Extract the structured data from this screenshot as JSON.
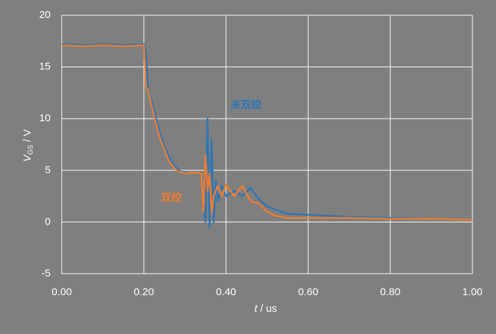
{
  "chart_data": {
    "type": "line",
    "xlabel": [
      "t",
      " / us"
    ],
    "ylabel": [
      "V",
      "GS",
      " / V"
    ],
    "x": [
      0,
      0.05,
      0.1,
      0.15,
      0.2,
      0.205,
      0.21,
      0.22,
      0.23,
      0.24,
      0.25,
      0.26,
      0.27,
      0.28,
      0.29,
      0.3,
      0.32,
      0.34,
      0.345,
      0.35,
      0.355,
      0.36,
      0.365,
      0.37,
      0.375,
      0.38,
      0.39,
      0.4,
      0.42,
      0.44,
      0.46,
      0.48,
      0.5,
      0.52,
      0.55,
      0.6,
      0.65,
      0.7,
      0.8,
      0.9,
      1.0
    ],
    "series": [
      {
        "name": "未双绞",
        "color": "#2e75b6",
        "values": [
          17.2,
          17.1,
          17.2,
          17.1,
          17.2,
          16.5,
          13,
          11.5,
          10,
          8.5,
          7.3,
          6.4,
          5.7,
          5.2,
          4.9,
          4.8,
          4.8,
          4.7,
          2,
          0,
          10,
          -0.5,
          8,
          0,
          4,
          2,
          3.5,
          2.5,
          3,
          2.5,
          3.3,
          2.2,
          1.5,
          1.2,
          0.8,
          0.7,
          0.6,
          0.5,
          0.4,
          0.3,
          0.2
        ]
      },
      {
        "name": "双绞",
        "color": "#ed7d31",
        "values": [
          17.1,
          17.0,
          17.1,
          17.0,
          17.1,
          13,
          12.8,
          11,
          9.5,
          8,
          7,
          6,
          5.4,
          5,
          4.8,
          4.7,
          4.8,
          4.7,
          1,
          6.5,
          3,
          4.7,
          0.8,
          2.5,
          3,
          3.5,
          2.5,
          3.6,
          2.5,
          3.5,
          2,
          1.8,
          1,
          0.6,
          0.4,
          0.4,
          0.4,
          0.4,
          0.3,
          0.3,
          0.2
        ]
      }
    ],
    "xlim": [
      0,
      1
    ],
    "xticks": [
      {
        "value": 0,
        "label": "0.00"
      },
      {
        "value": 0.2,
        "label": "0.20"
      },
      {
        "value": 0.4,
        "label": "0.40"
      },
      {
        "value": 0.6,
        "label": "0.60"
      },
      {
        "value": 0.8,
        "label": "0.80"
      },
      {
        "value": 1,
        "label": "1.00"
      }
    ],
    "ylim": [
      -5,
      20
    ],
    "yticks": [
      -5,
      0,
      5,
      10,
      15,
      20
    ],
    "grid": true
  }
}
